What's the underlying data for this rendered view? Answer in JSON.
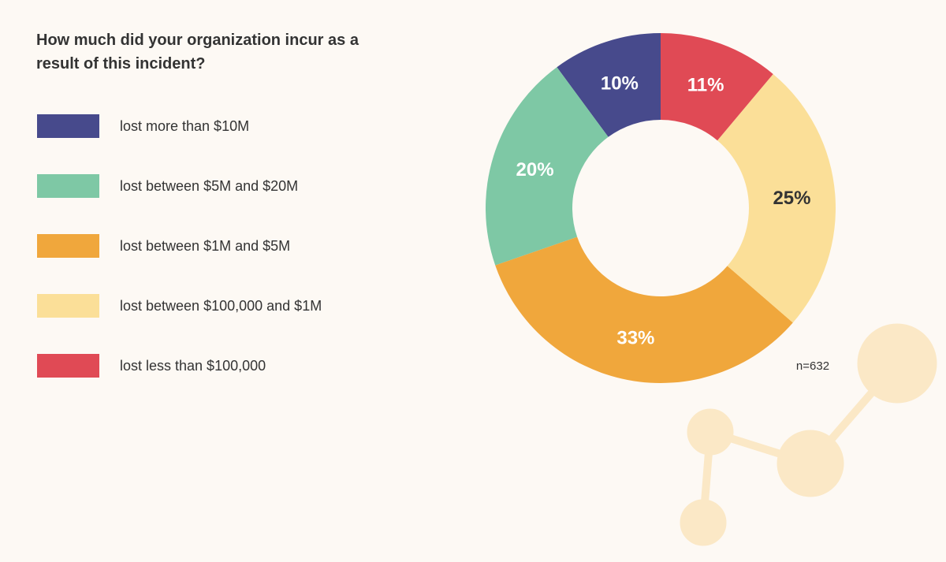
{
  "chart_data": {
    "type": "donut",
    "title": "How much did your organization incur as a result of this incident?",
    "categories": [
      "lost more than $10M",
      "lost between $5M and $20M",
      "lost between $1M and $5M",
      "lost between $100,000 and $1M",
      "lost less than $100,000"
    ],
    "values": [
      10,
      20,
      33,
      25,
      11
    ],
    "value_labels": [
      "10%",
      "20%",
      "33%",
      "25%",
      "11%"
    ],
    "colors": [
      "#474a8c",
      "#7ec8a5",
      "#f0a73c",
      "#fbdf98",
      "#e04a55"
    ],
    "label_colors": [
      "#ffffff",
      "#ffffff",
      "#ffffff",
      "#333333",
      "#ffffff"
    ],
    "note": "n=632"
  }
}
